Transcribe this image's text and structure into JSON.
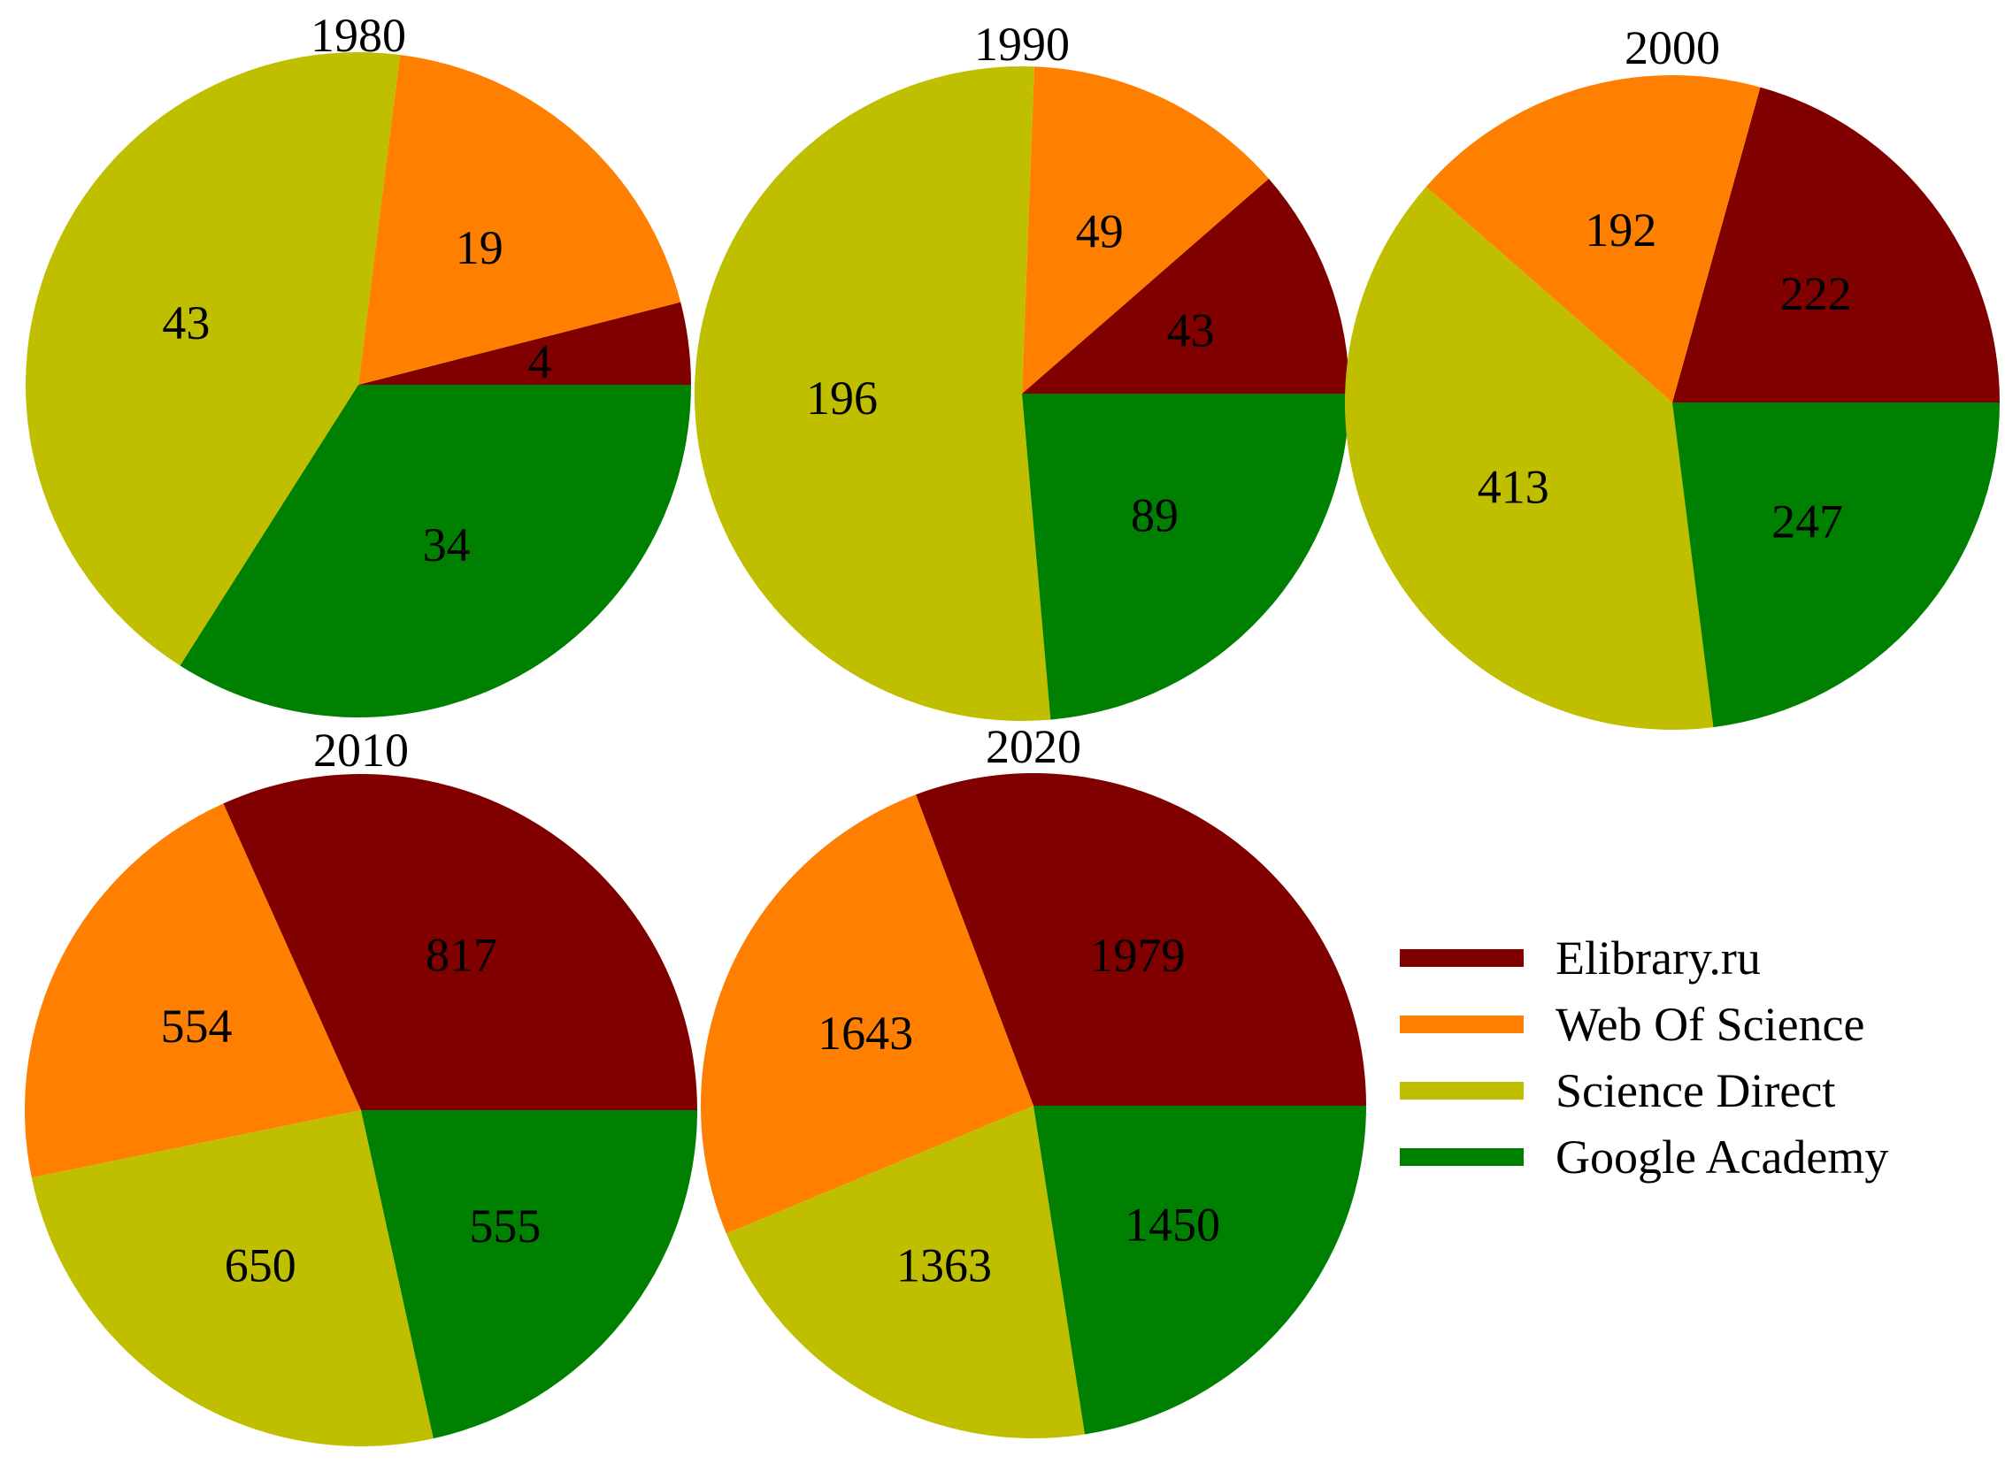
{
  "colors": {
    "Elibrary.ru": "#800000",
    "Web Of Science": "#ff8000",
    "Science Direct": "#bfbf00",
    "Google Academy": "#008000"
  },
  "legend": [
    {
      "label": "Elibrary.ru",
      "color": "#800000"
    },
    {
      "label": "Web Of Science",
      "color": "#ff8000"
    },
    {
      "label": "Science Direct",
      "color": "#bfbf00"
    },
    {
      "label": "Google Academy",
      "color": "#008000"
    }
  ],
  "chart_data": [
    {
      "type": "pie",
      "title": "1980",
      "start_angle_deg": 0,
      "direction": "counterclockwise",
      "slices": [
        {
          "label": "Elibrary.ru",
          "value": 4
        },
        {
          "label": "Web Of Science",
          "value": 19
        },
        {
          "label": "Science Direct",
          "value": 43
        },
        {
          "label": "Google Academy",
          "value": 34
        }
      ]
    },
    {
      "type": "pie",
      "title": "1990",
      "start_angle_deg": 0,
      "direction": "counterclockwise",
      "slices": [
        {
          "label": "Elibrary.ru",
          "value": 43
        },
        {
          "label": "Web Of Science",
          "value": 49
        },
        {
          "label": "Science Direct",
          "value": 196
        },
        {
          "label": "Google Academy",
          "value": 89
        }
      ]
    },
    {
      "type": "pie",
      "title": "2000",
      "start_angle_deg": 0,
      "direction": "counterclockwise",
      "slices": [
        {
          "label": "Elibrary.ru",
          "value": 222
        },
        {
          "label": "Web Of Science",
          "value": 192
        },
        {
          "label": "Science Direct",
          "value": 413
        },
        {
          "label": "Google Academy",
          "value": 247
        }
      ]
    },
    {
      "type": "pie",
      "title": "2010",
      "start_angle_deg": 0,
      "direction": "counterclockwise",
      "slices": [
        {
          "label": "Elibrary.ru",
          "value": 817
        },
        {
          "label": "Web Of Science",
          "value": 554
        },
        {
          "label": "Science Direct",
          "value": 650
        },
        {
          "label": "Google Academy",
          "value": 555
        }
      ]
    },
    {
      "type": "pie",
      "title": "2020",
      "start_angle_deg": 0,
      "direction": "counterclockwise",
      "slices": [
        {
          "label": "Elibrary.ru",
          "value": 1979
        },
        {
          "label": "Web Of Science",
          "value": 1643
        },
        {
          "label": "Science Direct",
          "value": 1363
        },
        {
          "label": "Google Academy",
          "value": 1450
        }
      ]
    }
  ]
}
